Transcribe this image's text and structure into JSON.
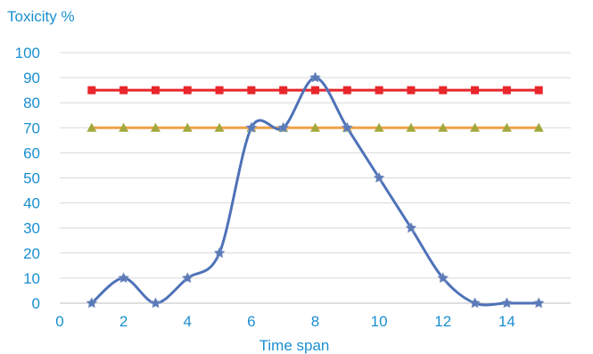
{
  "chart_data": {
    "type": "line",
    "title": "",
    "ylabel": "Toxicity %",
    "xlabel": "Time span",
    "xlim": [
      0,
      16
    ],
    "ylim": [
      0,
      100
    ],
    "x_ticks": [
      0,
      2,
      4,
      6,
      8,
      10,
      12,
      14
    ],
    "y_ticks": [
      0,
      10,
      20,
      30,
      40,
      50,
      60,
      70,
      80,
      90,
      100
    ],
    "grid": "horizontal",
    "legend": "none",
    "colors": {
      "axis_text": "#1a8fd0",
      "grid": "#d9d9d9",
      "red_series": "#e8262b",
      "orange_series": "#f0a04a",
      "orange_marker": "#a2a83c",
      "blue_series": "#4e72b8",
      "blue_marker": "#5a7ab8"
    },
    "series": [
      {
        "color_key": "red",
        "marker": "square",
        "x": [
          1,
          2,
          3,
          4,
          5,
          6,
          7,
          8,
          9,
          10,
          11,
          12,
          13,
          14,
          15
        ],
        "y": [
          85,
          85,
          85,
          85,
          85,
          85,
          85,
          85,
          85,
          85,
          85,
          85,
          85,
          85,
          85
        ]
      },
      {
        "color_key": "orange",
        "marker": "triangle",
        "x": [
          1,
          2,
          3,
          4,
          5,
          6,
          7,
          8,
          9,
          10,
          11,
          12,
          13,
          14,
          15
        ],
        "y": [
          70,
          70,
          70,
          70,
          70,
          70,
          70,
          70,
          70,
          70,
          70,
          70,
          70,
          70,
          70
        ]
      },
      {
        "color_key": "blue",
        "marker": "star",
        "smooth": true,
        "x": [
          1,
          2,
          3,
          4,
          5,
          6,
          7,
          8,
          9,
          10,
          11,
          12,
          13,
          14,
          15
        ],
        "y": [
          0,
          10,
          0,
          10,
          20,
          70,
          70,
          90,
          70,
          50,
          30,
          10,
          0,
          0,
          0
        ]
      }
    ]
  }
}
